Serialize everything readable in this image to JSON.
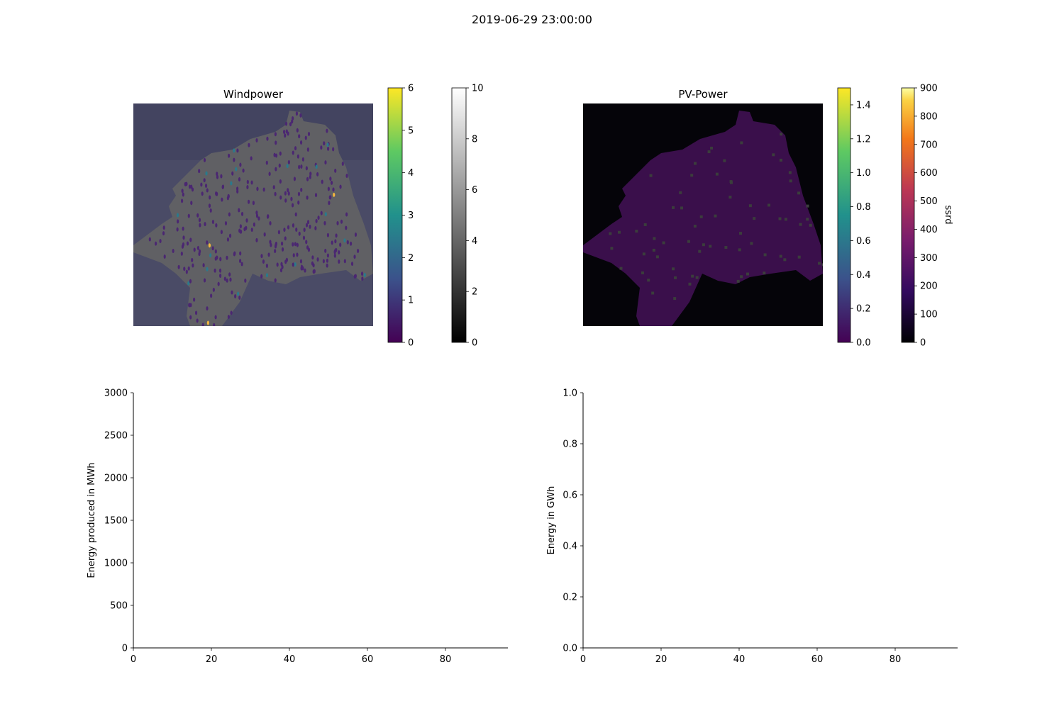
{
  "figure_title": "2019-06-29 23:00:00",
  "colors": {
    "wind_bg": "#4a4b66",
    "wind_region": "#606064",
    "pv_bg": "#050409",
    "pv_region": "#3a0f4b",
    "pv_spot": "#3b3d3c",
    "axis": "#000000"
  },
  "chart_data": [
    {
      "type": "heatmap",
      "title": "Windpower",
      "overlay_markers": "wind turbine sites (small violet ellipses)",
      "colorbars": [
        {
          "name": "",
          "colormap": "viridis",
          "range": [
            0,
            6
          ],
          "ticks": [
            "0",
            "1",
            "2",
            "3",
            "4",
            "5",
            "6"
          ]
        },
        {
          "name": "",
          "colormap": "gray",
          "range": [
            0,
            10
          ],
          "ticks": [
            "0",
            "2",
            "4",
            "6",
            "8",
            "10"
          ]
        }
      ]
    },
    {
      "type": "heatmap",
      "title": "PV-Power",
      "colorbars": [
        {
          "name": "",
          "colormap": "viridis",
          "range": [
            0,
            1.5
          ],
          "ticks": [
            "0.0",
            "0.2",
            "0.4",
            "0.6",
            "0.8",
            "1.0",
            "1.2",
            "1.4"
          ]
        },
        {
          "name": "ssrd",
          "colormap": "inferno",
          "range": [
            0,
            900
          ],
          "ticks": [
            "0",
            "100",
            "200",
            "300",
            "400",
            "500",
            "600",
            "700",
            "800",
            "900"
          ]
        }
      ]
    },
    {
      "type": "line",
      "title": "",
      "xlabel": "",
      "ylabel": "Energy produced in MWh",
      "xlim": [
        0,
        96
      ],
      "ylim": [
        0,
        3000
      ],
      "xticks": [
        "0",
        "20",
        "40",
        "60",
        "80"
      ],
      "yticks": [
        "0",
        "500",
        "1000",
        "1500",
        "2000",
        "2500",
        "3000"
      ],
      "series": []
    },
    {
      "type": "line",
      "title": "",
      "xlabel": "",
      "ylabel": "Energy in GWh",
      "xlim": [
        0,
        96
      ],
      "ylim": [
        0,
        1.0
      ],
      "xticks": [
        "0",
        "20",
        "40",
        "60",
        "80"
      ],
      "yticks": [
        "0.0",
        "0.2",
        "0.4",
        "0.6",
        "0.8",
        "1.0"
      ],
      "series": []
    }
  ]
}
